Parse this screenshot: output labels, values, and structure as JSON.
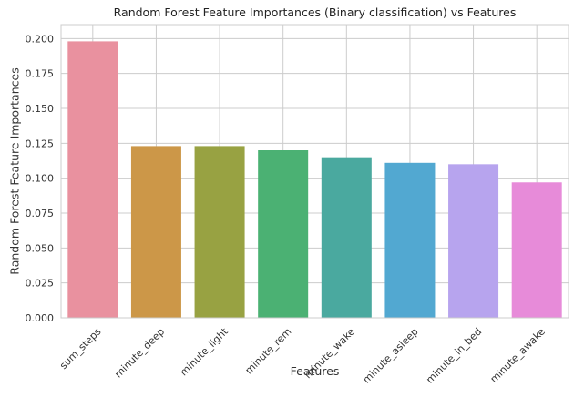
{
  "chart_data": {
    "type": "bar",
    "title": "Random Forest Feature Importances (Binary classification) vs Features",
    "xlabel": "Features",
    "ylabel": "Random Forest Feature Importances",
    "categories": [
      "sum_steps",
      "minute_deep",
      "minute_light",
      "minute_rem",
      "minute_wake",
      "minute_asleep",
      "minute_in_bed",
      "minute_awake"
    ],
    "values": [
      0.198,
      0.123,
      0.123,
      0.12,
      0.115,
      0.111,
      0.11,
      0.097
    ],
    "ylim": [
      0,
      0.21
    ],
    "yticks": [
      0.0,
      0.025,
      0.05,
      0.075,
      0.1,
      0.125,
      0.15,
      0.175,
      0.2
    ],
    "ytick_labels": [
      "0.000",
      "0.025",
      "0.050",
      "0.075",
      "0.100",
      "0.125",
      "0.150",
      "0.175",
      "0.200"
    ],
    "colors": [
      "#e9919f",
      "#cc9748",
      "#98a242",
      "#4bb173",
      "#4aa99f",
      "#52a8d1",
      "#b7a4ee",
      "#e78bd9"
    ],
    "grid": true,
    "legend": "none"
  }
}
